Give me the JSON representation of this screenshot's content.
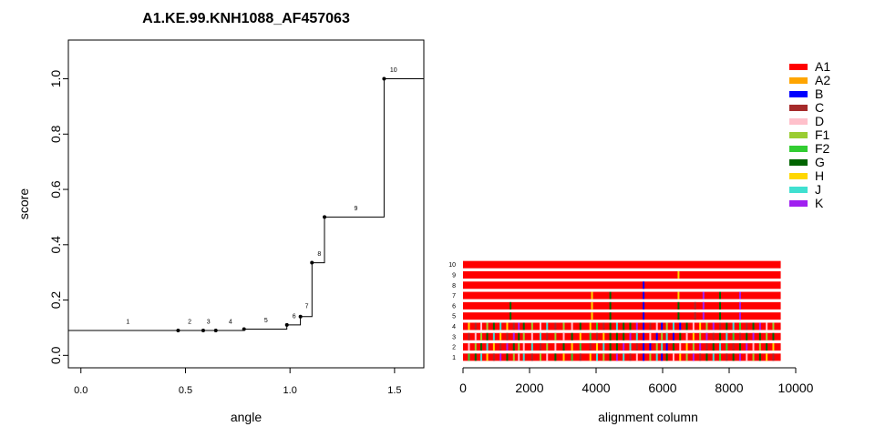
{
  "chart_data": [
    {
      "type": "line",
      "title": "A1.KE.99.KNH1088_AF457063",
      "xlabel": "angle",
      "ylabel": "score",
      "xlim": [
        -0.06,
        1.64
      ],
      "ylim": [
        -0.045,
        1.14
      ],
      "x_ticks": [
        {
          "v": 0.0,
          "label": "0.0"
        },
        {
          "v": 0.5,
          "label": "0.5"
        },
        {
          "v": 1.0,
          "label": "1.0"
        },
        {
          "v": 1.5,
          "label": "1.5"
        }
      ],
      "y_ticks": [
        {
          "v": 0.0,
          "label": "0.0"
        },
        {
          "v": 0.2,
          "label": "0.2"
        },
        {
          "v": 0.4,
          "label": "0.4"
        },
        {
          "v": 0.6,
          "label": "0.6"
        },
        {
          "v": 0.8,
          "label": "0.8"
        },
        {
          "v": 1.0,
          "label": "1.0"
        }
      ],
      "step_line": [
        [
          -0.06,
          0.09
        ],
        [
          0.465,
          0.09
        ],
        [
          0.585,
          0.09
        ],
        [
          0.645,
          0.09
        ],
        [
          0.78,
          0.09
        ],
        [
          0.78,
          0.095
        ],
        [
          0.985,
          0.095
        ],
        [
          0.985,
          0.11
        ],
        [
          1.05,
          0.11
        ],
        [
          1.05,
          0.14
        ],
        [
          1.105,
          0.14
        ],
        [
          1.105,
          0.335
        ],
        [
          1.165,
          0.335
        ],
        [
          1.165,
          0.5
        ],
        [
          1.45,
          0.5
        ],
        [
          1.45,
          1.0
        ],
        [
          1.64,
          1.0
        ]
      ],
      "points": [
        [
          0.465,
          0.09
        ],
        [
          0.585,
          0.09
        ],
        [
          0.645,
          0.09
        ],
        [
          0.78,
          0.095
        ],
        [
          0.985,
          0.11
        ],
        [
          1.05,
          0.14
        ],
        [
          1.105,
          0.335
        ],
        [
          1.165,
          0.5
        ],
        [
          1.45,
          1.0
        ]
      ],
      "point_labels": [
        {
          "text": "1",
          "x": 0.225,
          "y": 0.115
        },
        {
          "text": "2",
          "x": 0.52,
          "y": 0.115
        },
        {
          "text": "3",
          "x": 0.61,
          "y": 0.115
        },
        {
          "text": "4",
          "x": 0.715,
          "y": 0.115
        },
        {
          "text": "5",
          "x": 0.885,
          "y": 0.12
        },
        {
          "text": "6",
          "x": 1.02,
          "y": 0.135
        },
        {
          "text": "7",
          "x": 1.08,
          "y": 0.17
        },
        {
          "text": "8",
          "x": 1.14,
          "y": 0.36
        },
        {
          "text": "9",
          "x": 1.315,
          "y": 0.525
        },
        {
          "text": "10",
          "x": 1.495,
          "y": 1.025
        }
      ]
    },
    {
      "type": "heatmap",
      "xlabel": "alignment column",
      "xlim": [
        -300,
        10000
      ],
      "x_ticks": [
        {
          "v": 0,
          "label": "0"
        },
        {
          "v": 2000,
          "label": "2000"
        },
        {
          "v": 4000,
          "label": "4000"
        },
        {
          "v": 6000,
          "label": "6000"
        },
        {
          "v": 8000,
          "label": "8000"
        },
        {
          "v": 10000,
          "label": "10000"
        }
      ],
      "row_labels": [
        "1",
        "2",
        "3",
        "4",
        "5",
        "6",
        "7",
        "8",
        "9",
        "10"
      ],
      "alignment_length": 9550,
      "base_subtype": "A1",
      "rows": [
        {
          "label": "1",
          "segments": [
            [
              150,
              "F2"
            ],
            [
              350,
              "G"
            ],
            [
              520,
              "J"
            ],
            [
              700,
              "H"
            ],
            [
              900,
              "C"
            ],
            [
              1100,
              "K"
            ],
            [
              1300,
              "G"
            ],
            [
              1500,
              "F1"
            ],
            [
              1650,
              "D"
            ],
            [
              1800,
              "J"
            ],
            [
              2050,
              "C"
            ],
            [
              2300,
              "F1"
            ],
            [
              2500,
              "D"
            ],
            [
              2750,
              "G"
            ],
            [
              3000,
              "H"
            ],
            [
              3250,
              "F2"
            ],
            [
              3500,
              "C"
            ],
            [
              3800,
              "H"
            ],
            [
              4000,
              "J"
            ],
            [
              4200,
              "F1"
            ],
            [
              4400,
              "G"
            ],
            [
              4600,
              "K"
            ],
            [
              4800,
              "J"
            ],
            [
              5000,
              "C"
            ],
            [
              5200,
              "D"
            ],
            [
              5400,
              "B"
            ],
            [
              5600,
              "F1"
            ],
            [
              5800,
              "J"
            ],
            [
              5950,
              "B"
            ],
            [
              6100,
              "G"
            ],
            [
              6300,
              "D"
            ],
            [
              6500,
              "H"
            ],
            [
              6700,
              "F1"
            ],
            [
              6900,
              "K"
            ],
            [
              7100,
              "C"
            ],
            [
              7300,
              "G"
            ],
            [
              7500,
              "J"
            ],
            [
              7700,
              "F2"
            ],
            [
              7900,
              "C"
            ],
            [
              8100,
              "G"
            ],
            [
              8300,
              "K"
            ],
            [
              8500,
              "D"
            ],
            [
              8700,
              "F1"
            ],
            [
              8900,
              "G"
            ],
            [
              9100,
              "H"
            ],
            [
              9300,
              "C"
            ]
          ]
        },
        {
          "label": "2",
          "segments": [
            [
              150,
              "D"
            ],
            [
              350,
              "F1"
            ],
            [
              520,
              "G"
            ],
            [
              700,
              "J"
            ],
            [
              900,
              "H"
            ],
            [
              1100,
              "C"
            ],
            [
              1300,
              "K"
            ],
            [
              1500,
              "G"
            ],
            [
              1650,
              "F1"
            ],
            [
              1800,
              "D"
            ],
            [
              2050,
              "J"
            ],
            [
              2300,
              "C"
            ],
            [
              2500,
              "F1"
            ],
            [
              2750,
              "D"
            ],
            [
              3000,
              "G"
            ],
            [
              3250,
              "H"
            ],
            [
              3500,
              "F2"
            ],
            [
              3800,
              "C"
            ],
            [
              4000,
              "H"
            ],
            [
              4200,
              "J"
            ],
            [
              4400,
              "G"
            ],
            [
              4600,
              "G"
            ],
            [
              4800,
              "K"
            ],
            [
              5000,
              "J"
            ],
            [
              5200,
              "C"
            ],
            [
              5400,
              "B"
            ],
            [
              5600,
              "B"
            ],
            [
              5800,
              "F1"
            ],
            [
              5950,
              "J"
            ],
            [
              6100,
              "B"
            ],
            [
              6300,
              "G"
            ],
            [
              6500,
              "D"
            ],
            [
              6700,
              "H"
            ],
            [
              6900,
              "F1"
            ],
            [
              7100,
              "K"
            ],
            [
              7300,
              "C"
            ],
            [
              7500,
              "G"
            ],
            [
              7700,
              "J"
            ],
            [
              7900,
              "F2"
            ],
            [
              8100,
              "C"
            ],
            [
              8300,
              "G"
            ],
            [
              8500,
              "K"
            ],
            [
              8700,
              "D"
            ],
            [
              8900,
              "F1"
            ],
            [
              9100,
              "G"
            ],
            [
              9300,
              "H"
            ]
          ]
        },
        {
          "label": "3",
          "segments": [
            [
              150,
              "C"
            ],
            [
              350,
              "D"
            ],
            [
              520,
              "F1"
            ],
            [
              700,
              "G"
            ],
            [
              900,
              "J"
            ],
            [
              1100,
              "H"
            ],
            [
              1300,
              "C"
            ],
            [
              1500,
              "K"
            ],
            [
              1650,
              "G"
            ],
            [
              1800,
              "F1"
            ],
            [
              2050,
              "D"
            ],
            [
              2300,
              "J"
            ],
            [
              2500,
              "C"
            ],
            [
              2750,
              "F1"
            ],
            [
              3000,
              "D"
            ],
            [
              3250,
              "G"
            ],
            [
              3500,
              "H"
            ],
            [
              3800,
              "F2"
            ],
            [
              4000,
              "C"
            ],
            [
              4200,
              "H"
            ],
            [
              4400,
              "G"
            ],
            [
              4600,
              "G"
            ],
            [
              4800,
              "G"
            ],
            [
              5000,
              "K"
            ],
            [
              5200,
              "J"
            ],
            [
              5400,
              "B"
            ],
            [
              5600,
              "D"
            ],
            [
              5800,
              "B"
            ],
            [
              5950,
              "F1"
            ],
            [
              6100,
              "J"
            ],
            [
              6300,
              "B"
            ],
            [
              6500,
              "G"
            ],
            [
              6700,
              "D"
            ],
            [
              6900,
              "H"
            ],
            [
              7100,
              "F1"
            ],
            [
              7300,
              "K"
            ],
            [
              7500,
              "C"
            ],
            [
              7700,
              "G"
            ],
            [
              7900,
              "J"
            ],
            [
              8100,
              "F2"
            ],
            [
              8300,
              "C"
            ],
            [
              8500,
              "G"
            ],
            [
              8700,
              "K"
            ],
            [
              8900,
              "G"
            ],
            [
              9100,
              "F1"
            ],
            [
              9300,
              "G"
            ]
          ]
        },
        {
          "label": "4",
          "segments": [
            [
              150,
              "H"
            ],
            [
              350,
              "C"
            ],
            [
              520,
              "D"
            ],
            [
              700,
              "F1"
            ],
            [
              900,
              "G"
            ],
            [
              1100,
              "J"
            ],
            [
              1300,
              "H"
            ],
            [
              1500,
              "C"
            ],
            [
              1650,
              "K"
            ],
            [
              1800,
              "G"
            ],
            [
              2050,
              "F1"
            ],
            [
              2300,
              "D"
            ],
            [
              2500,
              "J"
            ],
            [
              2750,
              "C"
            ],
            [
              3000,
              "F1"
            ],
            [
              3250,
              "D"
            ],
            [
              3500,
              "G"
            ],
            [
              3800,
              "H"
            ],
            [
              4000,
              "F2"
            ],
            [
              4200,
              "C"
            ],
            [
              4400,
              "G"
            ],
            [
              4600,
              "J"
            ],
            [
              4800,
              "G"
            ],
            [
              5000,
              "G"
            ],
            [
              5200,
              "K"
            ],
            [
              5400,
              "B"
            ],
            [
              5600,
              "C"
            ],
            [
              5800,
              "D"
            ],
            [
              5950,
              "B"
            ],
            [
              6100,
              "F1"
            ],
            [
              6300,
              "J"
            ],
            [
              6500,
              "B"
            ],
            [
              6700,
              "G"
            ],
            [
              6900,
              "D"
            ],
            [
              7100,
              "H"
            ],
            [
              7300,
              "F1"
            ],
            [
              7500,
              "K"
            ],
            [
              7700,
              "C"
            ],
            [
              7900,
              "G"
            ],
            [
              8100,
              "J"
            ],
            [
              8300,
              "F2"
            ],
            [
              8500,
              "C"
            ],
            [
              8700,
              "G"
            ],
            [
              8900,
              "K"
            ],
            [
              9100,
              "D"
            ],
            [
              9300,
              "F1"
            ]
          ]
        },
        {
          "label": "5",
          "segments": [
            [
              1400,
              "G"
            ],
            [
              3850,
              "H"
            ],
            [
              4400,
              "G"
            ],
            [
              5400,
              "B"
            ],
            [
              6450,
              "G"
            ],
            [
              6950,
              "C"
            ],
            [
              7200,
              "K"
            ],
            [
              7700,
              "G"
            ],
            [
              8300,
              "K"
            ]
          ]
        },
        {
          "label": "6",
          "segments": [
            [
              1400,
              "G"
            ],
            [
              3850,
              "H"
            ],
            [
              4400,
              "G"
            ],
            [
              5400,
              "B"
            ],
            [
              6450,
              "G"
            ],
            [
              6950,
              "C"
            ],
            [
              7200,
              "K"
            ],
            [
              7700,
              "G"
            ],
            [
              8300,
              "K"
            ]
          ]
        },
        {
          "label": "7",
          "segments": [
            [
              3850,
              "H"
            ],
            [
              4400,
              "G"
            ],
            [
              5400,
              "B"
            ],
            [
              6450,
              "H"
            ],
            [
              7200,
              "K"
            ],
            [
              7700,
              "G"
            ],
            [
              8300,
              "K"
            ]
          ]
        },
        {
          "label": "8",
          "segments": [
            [
              5400,
              "B"
            ]
          ]
        },
        {
          "label": "9",
          "segments": [
            [
              6450,
              "H"
            ]
          ]
        },
        {
          "label": "10",
          "segments": []
        }
      ]
    }
  ],
  "legend": {
    "items": [
      {
        "label": "A1",
        "color": "#ff0000"
      },
      {
        "label": "A2",
        "color": "#ffa500"
      },
      {
        "label": "B",
        "color": "#0000ff"
      },
      {
        "label": "C",
        "color": "#a52a2a"
      },
      {
        "label": "D",
        "color": "#ffc0cb"
      },
      {
        "label": "F1",
        "color": "#9acd32"
      },
      {
        "label": "F2",
        "color": "#32cd32"
      },
      {
        "label": "G",
        "color": "#006400"
      },
      {
        "label": "H",
        "color": "#ffd700"
      },
      {
        "label": "J",
        "color": "#40e0d0"
      },
      {
        "label": "K",
        "color": "#a020f0"
      }
    ]
  }
}
